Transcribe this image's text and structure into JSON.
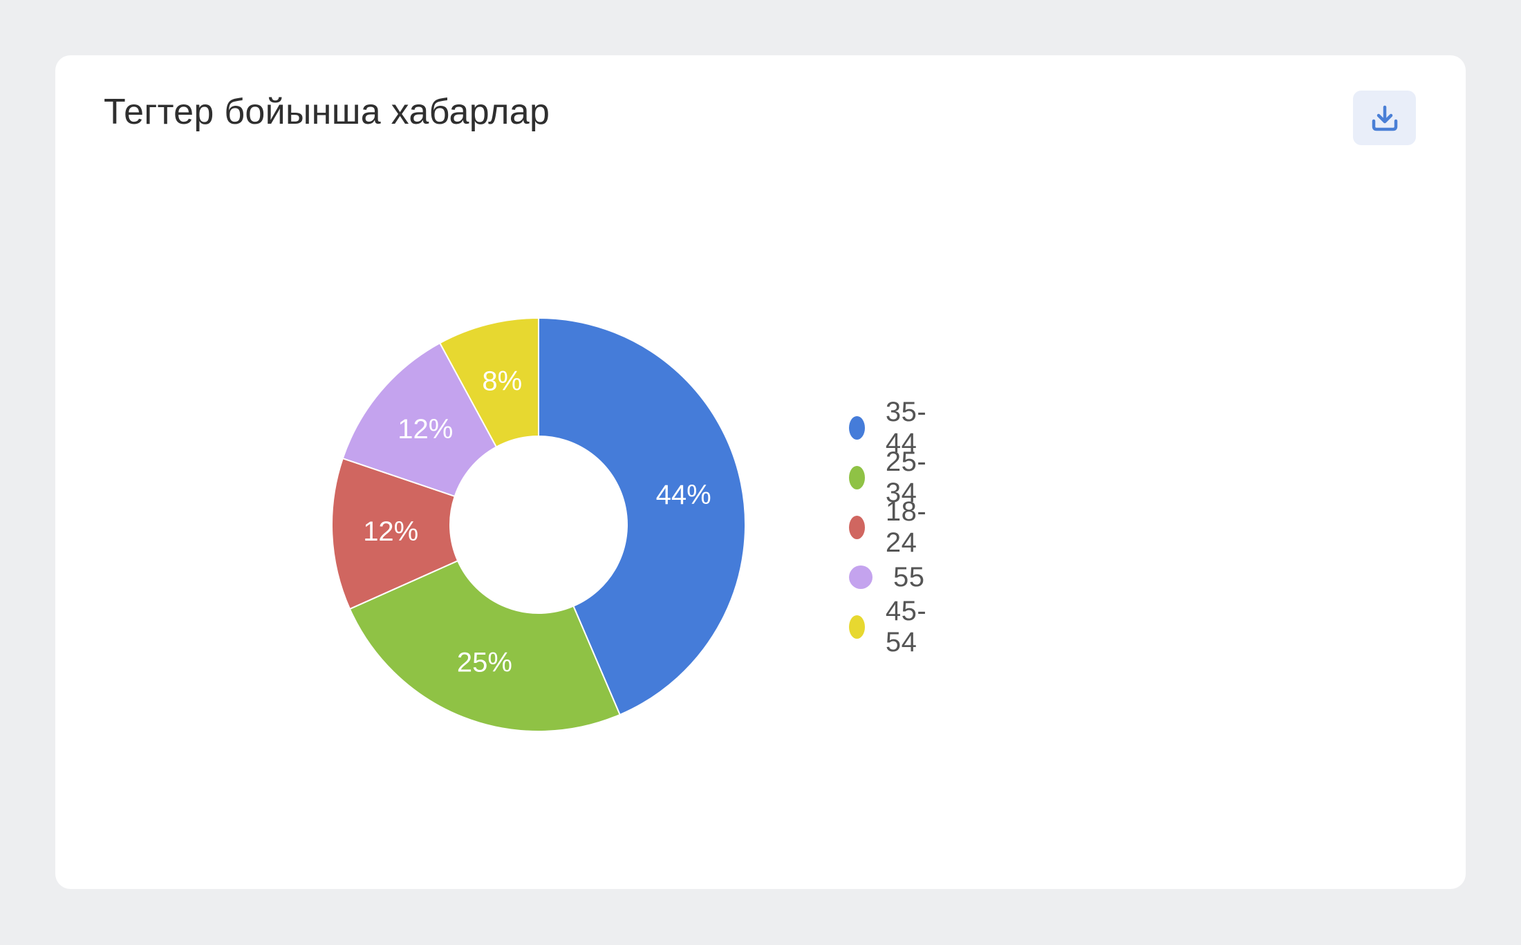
{
  "card": {
    "title": "Тегтер бойынша хабарлар",
    "download_icon": "download-icon",
    "download_icon_color": "#4a7fd6",
    "download_button_bg": "#e9eef9"
  },
  "chart_data": {
    "type": "pie",
    "donut": true,
    "title": "Тегтер бойынша хабарлар",
    "legend_position": "right",
    "slices": [
      {
        "label": "35-44",
        "value": 44,
        "display": "44%",
        "color": "#457cd9"
      },
      {
        "label": "25-34",
        "value": 25,
        "display": "25%",
        "color": "#8fc245"
      },
      {
        "label": "18-24",
        "value": 12,
        "display": "12%",
        "color": "#d06660"
      },
      {
        "label": "55",
        "value": 12,
        "display": "12%",
        "color": "#c4a3ee"
      },
      {
        "label": "45-54",
        "value": 8,
        "display": "8%",
        "color": "#e7d830"
      }
    ]
  }
}
